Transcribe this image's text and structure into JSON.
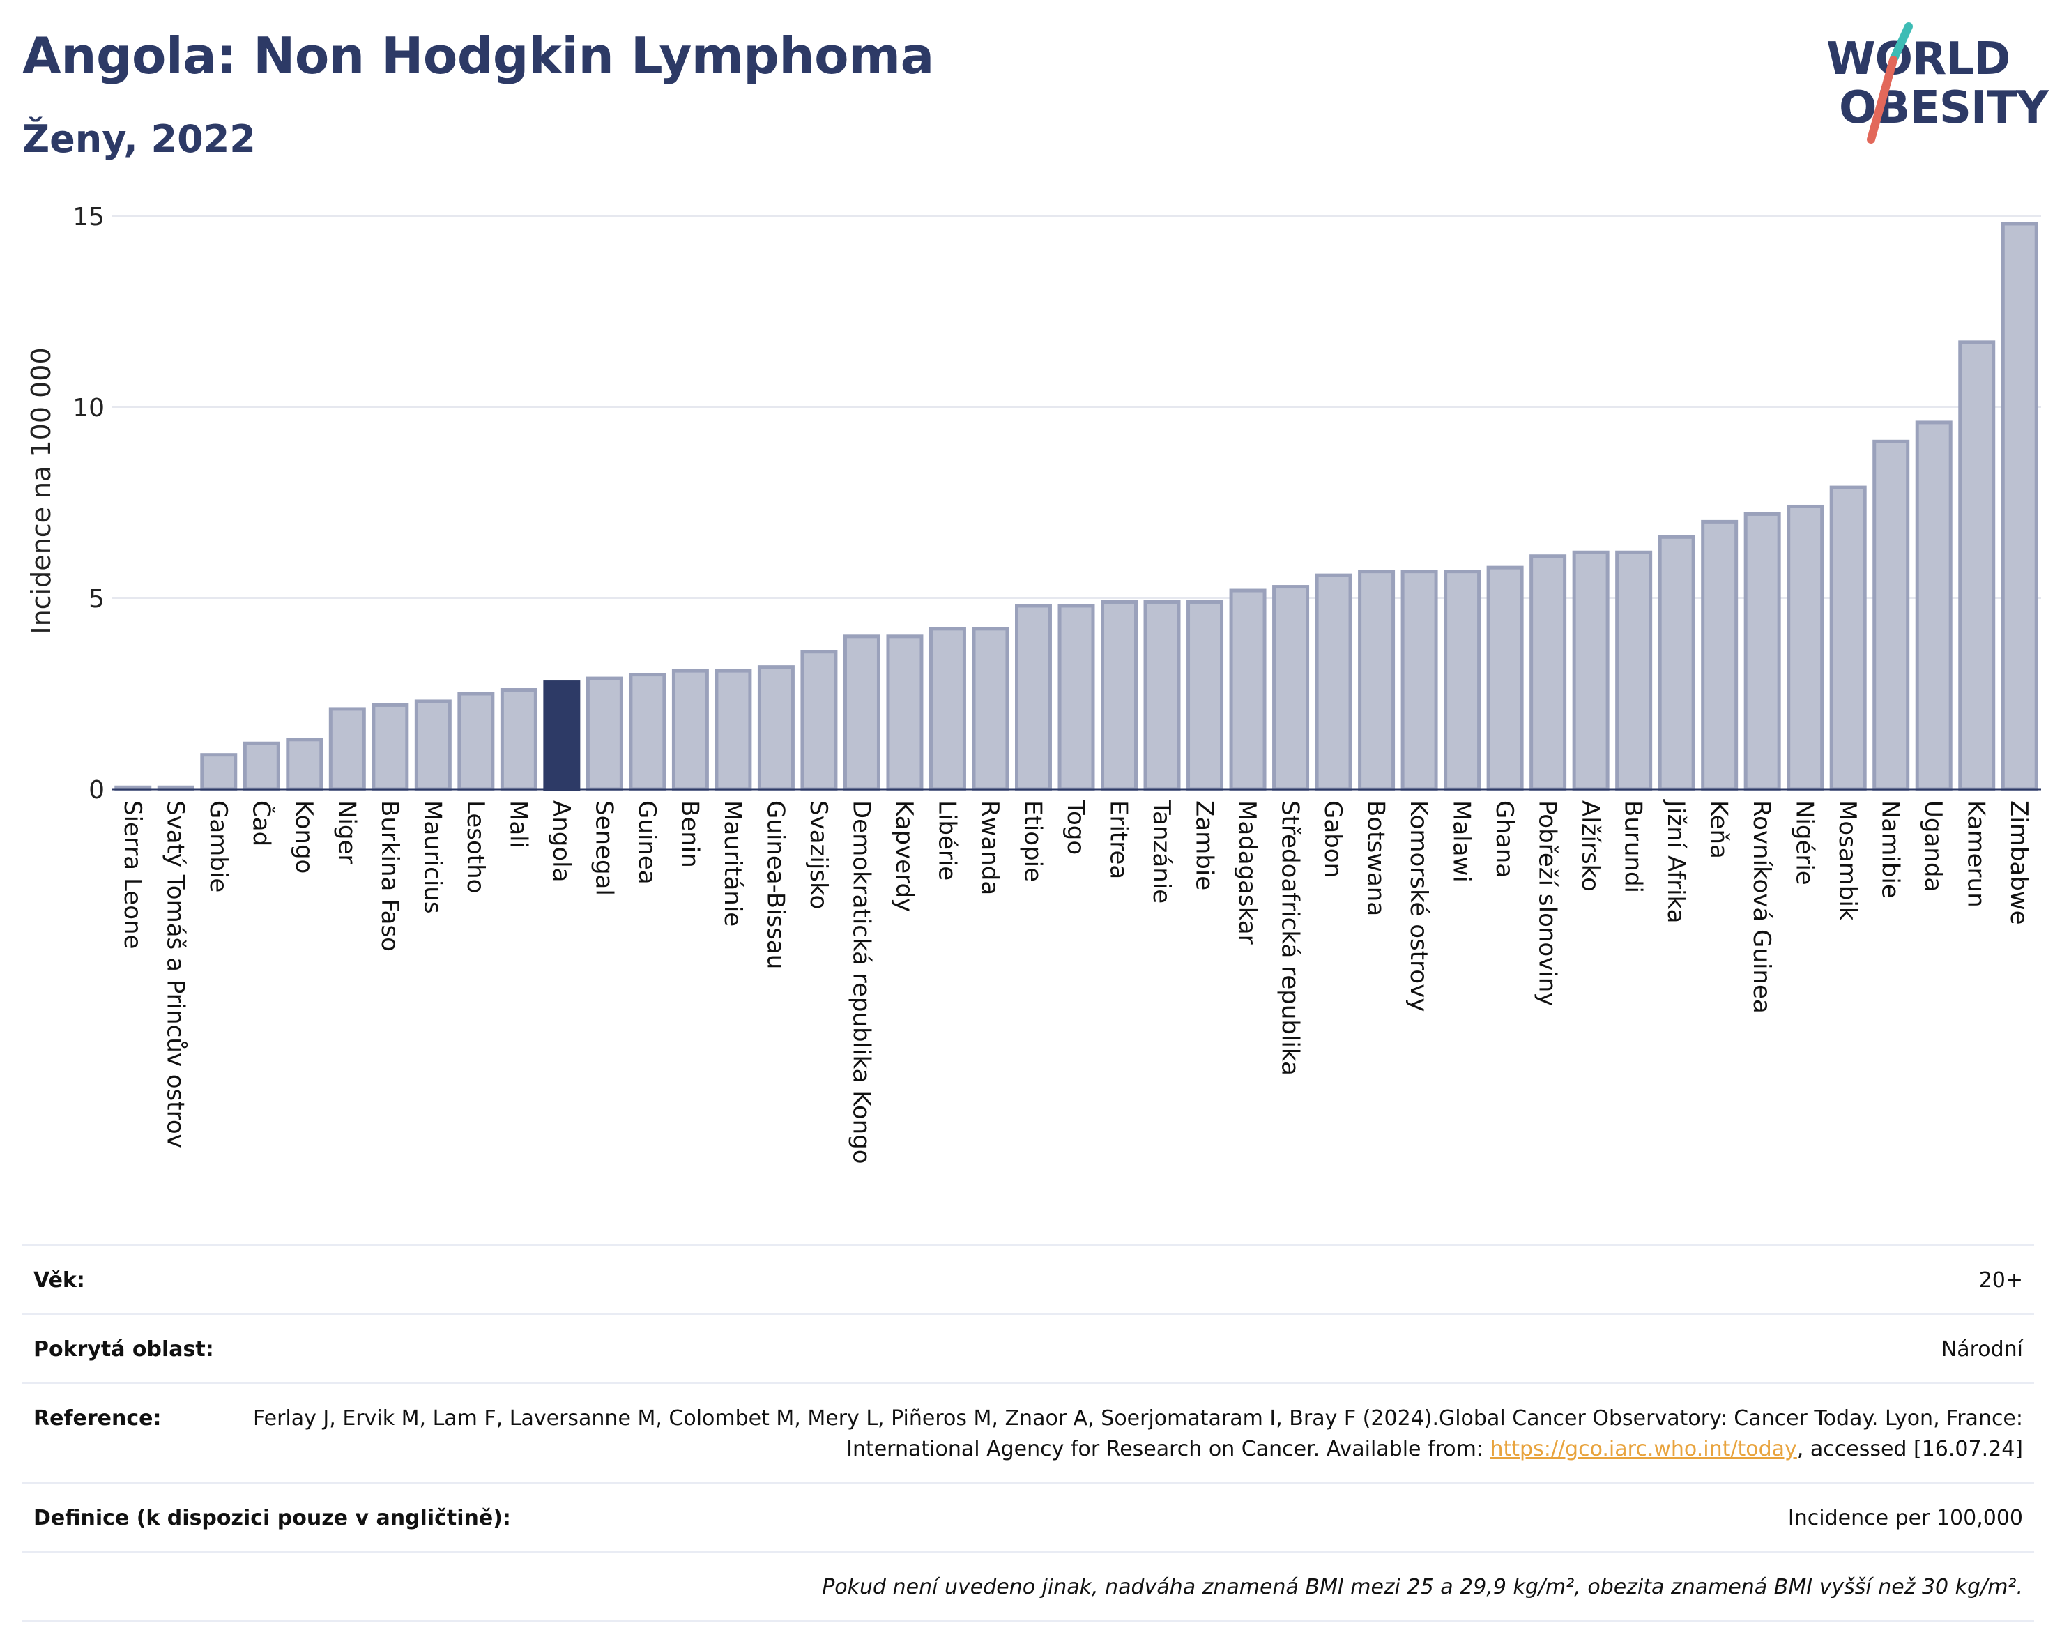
{
  "header": {
    "title": "Angola: Non Hodgkin Lymphoma",
    "subtitle": "Ženy, 2022",
    "logo_line1": "WORLD",
    "logo_line2": "OBESITY"
  },
  "colors": {
    "bar_fill": "#bcc1d1",
    "bar_stroke": "#9aa1bb",
    "highlight": "#2d3a66",
    "axis": "#2d3a66",
    "grid": "#e6e8ef",
    "logo_teal": "#3dbcb5",
    "logo_coral": "#e2685a",
    "link": "#e8a33d"
  },
  "chart_data": {
    "type": "bar",
    "ylabel": "Incidence na 100 000",
    "ylim": [
      0,
      15
    ],
    "yticks": [
      0,
      5,
      10,
      15
    ],
    "grid": true,
    "highlight": "Angola",
    "categories": [
      "Sierra Leone",
      "Svatý Tomáš a Princův ostrov",
      "Gambie",
      "Čad",
      "Kongo",
      "Niger",
      "Burkina Faso",
      "Mauricius",
      "Lesotho",
      "Mali",
      "Angola",
      "Senegal",
      "Guinea",
      "Benin",
      "Mauritánie",
      "Guinea-Bissau",
      "Svazijsko",
      "Demokratická republika Kongo",
      "Kapverdy",
      "Libérie",
      "Rwanda",
      "Etiopie",
      "Togo",
      "Eritrea",
      "Tanzánie",
      "Zambie",
      "Madagaskar",
      "Středoafrická republika",
      "Gabon",
      "Botswana",
      "Komorské ostrovy",
      "Malawi",
      "Ghana",
      "Pobřeží slonoviny",
      "Alžírsko",
      "Burundi",
      "Jižní Afrika",
      "Keňa",
      "Rovníková Guinea",
      "Nigérie",
      "Mosambik",
      "Namibie",
      "Uganda",
      "Kamerun",
      "Zimbabwe"
    ],
    "values": [
      0.05,
      0.05,
      0.9,
      1.2,
      1.3,
      2.1,
      2.2,
      2.3,
      2.5,
      2.6,
      2.8,
      2.9,
      3.0,
      3.1,
      3.1,
      3.2,
      3.6,
      4.0,
      4.0,
      4.2,
      4.2,
      4.8,
      4.8,
      4.9,
      4.9,
      4.9,
      5.2,
      5.3,
      5.6,
      5.7,
      5.7,
      5.7,
      5.8,
      6.1,
      6.2,
      6.2,
      6.6,
      7.0,
      7.2,
      7.4,
      7.9,
      9.1,
      9.6,
      11.7,
      14.8
    ]
  },
  "meta": {
    "rows": [
      {
        "label": "Věk:",
        "value": "20+"
      },
      {
        "label": "Pokrytá oblast:",
        "value": "Národní"
      }
    ],
    "reference": {
      "label": "Reference:",
      "text_before": "Ferlay J, Ervik M, Lam F, Laversanne M, Colombet M, Mery L, Piñeros M, Znaor A, Soerjomataram I, Bray F (2024).Global Cancer Observatory: Cancer Today. Lyon, France: International Agency for Research on Cancer. Available from: ",
      "link_text": "https://gco.iarc.who.int/today",
      "text_after": ", accessed [16.07.24]"
    },
    "definition": {
      "label": "Definice (k dispozici pouze v angličtině):",
      "value": "Incidence per 100,000"
    },
    "note": "Pokud není uvedeno jinak, nadváha znamená BMI mezi 25 a 29,9 kg/m², obezita znamená BMI vyšší než 30 kg/m²."
  }
}
